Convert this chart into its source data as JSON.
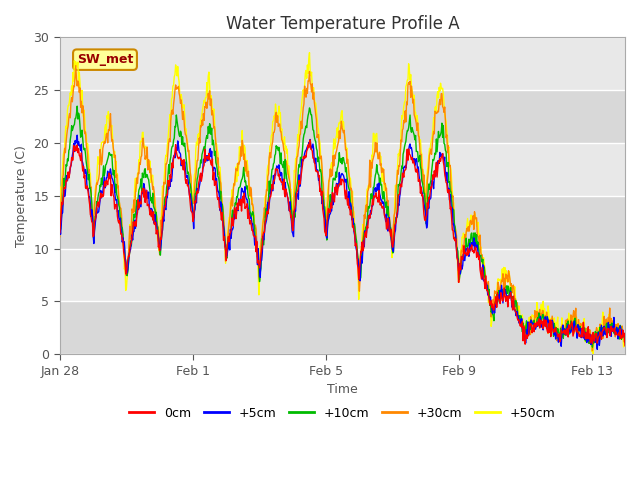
{
  "title": "Water Temperature Profile A",
  "xlabel": "Time",
  "ylabel": "Temperature (C)",
  "ylim": [
    0,
    30
  ],
  "yticks": [
    0,
    5,
    10,
    15,
    20,
    25,
    30
  ],
  "colors": {
    "0cm": "#ff0000",
    "+5cm": "#0000ff",
    "+10cm": "#00bb00",
    "+30cm": "#ff8800",
    "+50cm": "#ffff00"
  },
  "legend_labels": [
    "0cm",
    "+5cm",
    "+10cm",
    "+30cm",
    "+50cm"
  ],
  "annotation_text": "SW_met",
  "annotation_color": "#990000",
  "annotation_bg": "#ffff99",
  "annotation_border": "#cc8800",
  "plot_bg": "#e8e8e8",
  "plot_bg_band1": "#dcdcdc",
  "plot_bg_band2": "#e8e8e8",
  "grid_color": "#ffffff",
  "tick_positions": [
    0,
    4,
    8,
    12,
    16
  ],
  "tick_labels": [
    "Jan 28",
    "Feb 1",
    "Feb 5",
    "Feb 9",
    "Feb 13"
  ],
  "xlim": [
    0,
    17
  ]
}
